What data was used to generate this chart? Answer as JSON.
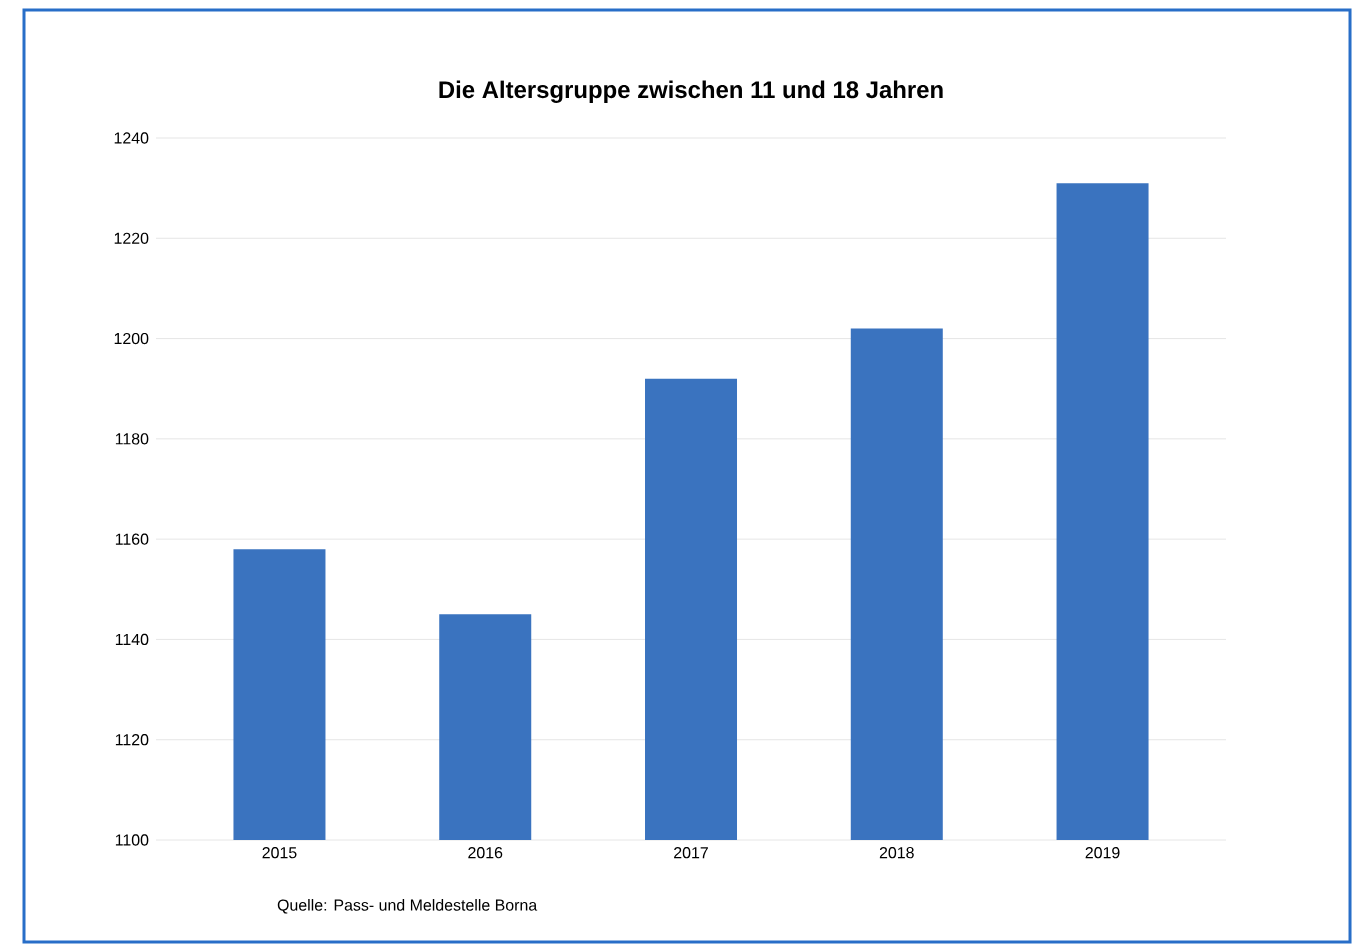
{
  "chart_data": {
    "type": "bar",
    "title": "Die Altersgruppe zwischen 11 und 18 Jahren",
    "categories": [
      "2015",
      "2016",
      "2017",
      "2018",
      "2019"
    ],
    "values": [
      1158,
      1145,
      1192,
      1202,
      1231
    ],
    "color": "#3a73bf",
    "ylim": [
      1100,
      1240
    ],
    "yticks": [
      1100,
      1120,
      1140,
      1160,
      1180,
      1200,
      1220,
      1240
    ],
    "grid": "y",
    "annotations": [
      "Quelle: Pass- und Meldestelle Borna"
    ]
  }
}
